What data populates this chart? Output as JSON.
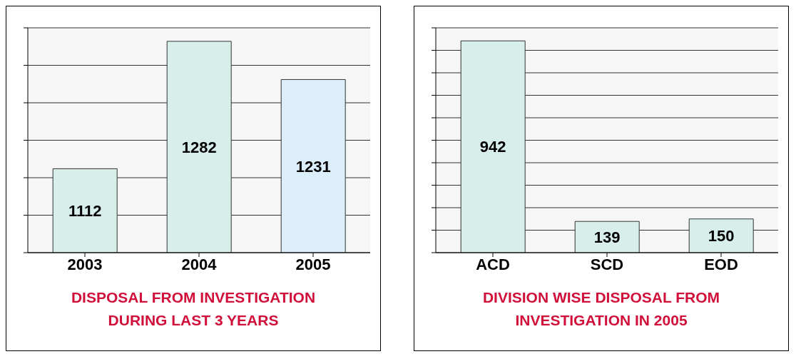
{
  "chart_data": [
    {
      "type": "bar",
      "title": "DISPOSAL FROM INVESTIGATION DURING LAST 3 YEARS",
      "categories": [
        "2003",
        "2004",
        "2005"
      ],
      "values": [
        1112,
        1282,
        1231
      ],
      "colors": [
        "#d8eeea",
        "#d8eeea",
        "#dbeefa"
      ],
      "ylim": [
        1000,
        1300
      ],
      "yticks": [
        {
          "value": 1000,
          "label": null
        },
        {
          "value": 1050,
          "label": null
        },
        {
          "value": 1100,
          "label": null
        },
        {
          "value": 1150,
          "label": null
        },
        {
          "value": 1200,
          "label": null
        },
        {
          "value": 1250,
          "label": null
        },
        {
          "value": 1300,
          "label": null
        }
      ],
      "grid": "y",
      "data_labels": true,
      "tick_labels": "x"
    },
    {
      "type": "bar",
      "title": "DIVISION WISE DISPOSAL FROM INVESTIGATION IN 2005",
      "categories": [
        "ACD",
        "SCD",
        "EOD"
      ],
      "values": [
        942,
        139,
        150
      ],
      "colors": [
        "#d8eeea",
        "#d8eeea",
        "#d8eeea"
      ],
      "ylim": [
        0,
        1000
      ],
      "yticks": [
        {
          "value": 0,
          "label": null
        },
        {
          "value": 100,
          "label": null
        },
        {
          "value": 200,
          "label": null
        },
        {
          "value": 300,
          "label": null
        },
        {
          "value": 400,
          "label": null
        },
        {
          "value": 500,
          "label": null
        },
        {
          "value": 600,
          "label": null
        },
        {
          "value": 700,
          "label": null
        },
        {
          "value": 800,
          "label": null
        },
        {
          "value": 900,
          "label": null
        },
        {
          "value": 1000,
          "label": null
        }
      ],
      "grid": "y",
      "data_labels": true,
      "tick_labels": "x"
    }
  ]
}
